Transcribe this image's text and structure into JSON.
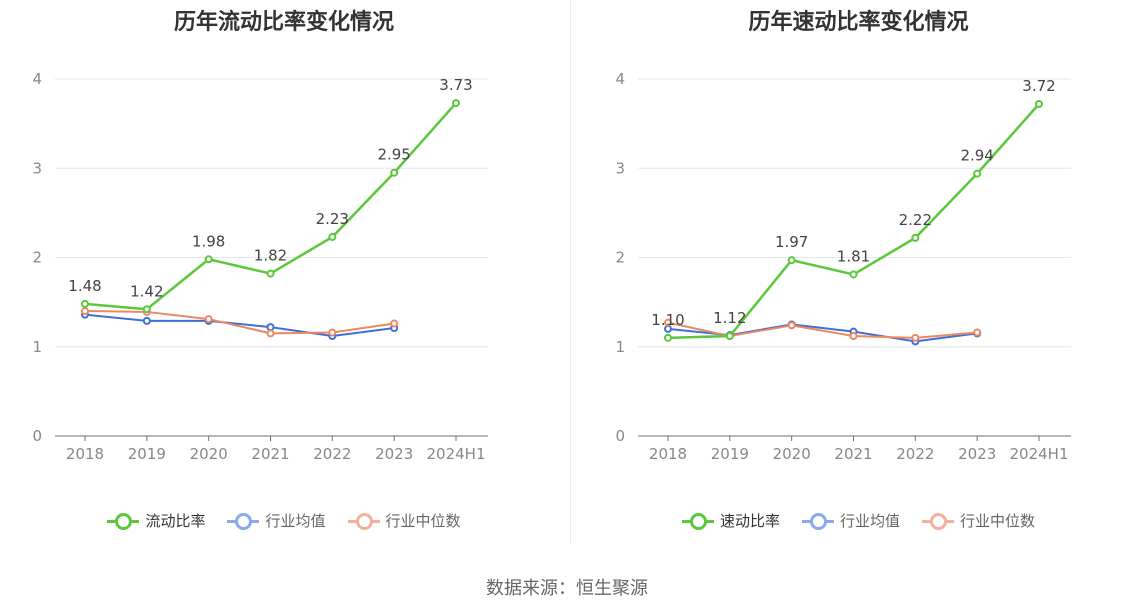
{
  "source_text": "数据来源：恒生聚源",
  "chart_data": [
    {
      "type": "line",
      "title": "历年流动比率变化情况",
      "categories": [
        "2018",
        "2019",
        "2020",
        "2021",
        "2022",
        "2023",
        "2024H1"
      ],
      "ylim": [
        0,
        4
      ],
      "yticks": [
        "0",
        "1",
        "2",
        "3",
        "4"
      ],
      "grid": true,
      "legend_position": "bottom",
      "series": [
        {
          "name": "流动比率",
          "color": "#5ac83a",
          "values": [
            1.48,
            1.42,
            1.98,
            1.82,
            2.23,
            2.95,
            3.73
          ],
          "labels": [
            "1.48",
            "1.42",
            "1.98",
            "1.82",
            "2.23",
            "2.95",
            "3.73"
          ]
        },
        {
          "name": "行业均值",
          "color": "#3f6fd4",
          "legend_color": "#8aa8ea",
          "values": [
            1.36,
            1.29,
            1.29,
            1.22,
            1.12,
            1.21,
            null
          ]
        },
        {
          "name": "行业中位数",
          "color": "#ea8862",
          "legend_color": "#f4b09a",
          "values": [
            1.4,
            1.39,
            1.31,
            1.15,
            1.16,
            1.26,
            null
          ]
        }
      ]
    },
    {
      "type": "line",
      "title": "历年速动比率变化情况",
      "categories": [
        "2018",
        "2019",
        "2020",
        "2021",
        "2022",
        "2023",
        "2024H1"
      ],
      "ylim": [
        0,
        4
      ],
      "yticks": [
        "0",
        "1",
        "2",
        "3",
        "4"
      ],
      "grid": true,
      "legend_position": "bottom",
      "series": [
        {
          "name": "速动比率",
          "color": "#5ac83a",
          "values": [
            1.1,
            1.12,
            1.97,
            1.81,
            2.22,
            2.94,
            3.72
          ],
          "labels": [
            "1.10",
            "1.12",
            "1.97",
            "1.81",
            "2.22",
            "2.94",
            "3.72"
          ]
        },
        {
          "name": "行业均值",
          "color": "#3f6fd4",
          "legend_color": "#8aa8ea",
          "values": [
            1.2,
            1.13,
            1.25,
            1.17,
            1.06,
            1.15,
            null
          ]
        },
        {
          "name": "行业中位数",
          "color": "#ea8862",
          "legend_color": "#f4b09a",
          "values": [
            1.27,
            1.12,
            1.24,
            1.12,
            1.1,
            1.16,
            null
          ]
        }
      ]
    }
  ]
}
